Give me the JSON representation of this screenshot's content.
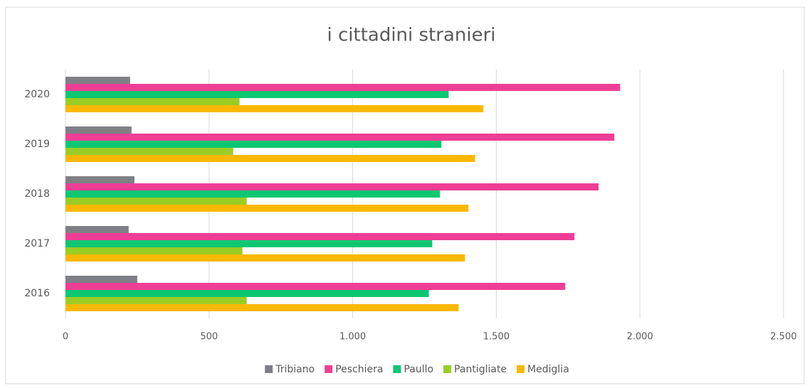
{
  "chart_data": {
    "type": "bar",
    "orientation": "horizontal",
    "title": "i cittadini stranieri",
    "categories": [
      "2016",
      "2017",
      "2018",
      "2019",
      "2020"
    ],
    "series": [
      {
        "name": "Tribiano",
        "color": "#7f7f86",
        "values": [
          250,
          220,
          240,
          230,
          225
        ]
      },
      {
        "name": "Peschiera",
        "color": "#ee3e96",
        "values": [
          1740,
          1772,
          1856,
          1911,
          1931
        ]
      },
      {
        "name": "Paullo",
        "color": "#0cc772",
        "values": [
          1265,
          1277,
          1304,
          1309,
          1334
        ]
      },
      {
        "name": "Pantigliate",
        "color": "#9acd24",
        "values": [
          631,
          616,
          631,
          584,
          606
        ]
      },
      {
        "name": "Mediglia",
        "color": "#f9b800",
        "values": [
          1369,
          1391,
          1403,
          1426,
          1455
        ]
      }
    ],
    "xlim": [
      0,
      2500
    ],
    "xticks": [
      0,
      500,
      {
        "value": 1000,
        "label": "1.000"
      },
      {
        "value": 1500,
        "label": "1.500"
      },
      {
        "value": 2000,
        "label": "2.000"
      },
      {
        "value": 2500,
        "label": "2.500"
      }
    ],
    "grid": true,
    "legend": "bottom"
  }
}
